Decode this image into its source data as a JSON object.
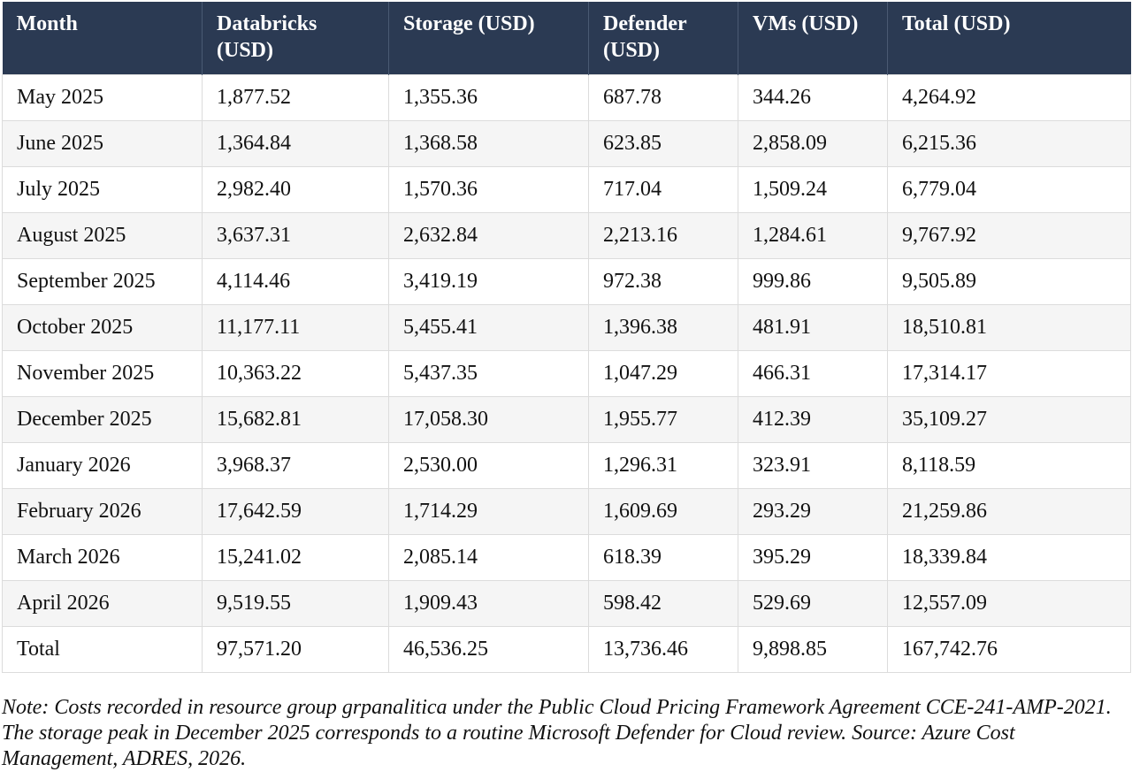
{
  "table": {
    "headers": [
      "Month",
      "Databricks (USD)",
      "Storage (USD)",
      "Defender (USD)",
      "VMs (USD)",
      "Total (USD)"
    ],
    "rows": [
      [
        "May 2025",
        "1,877.52",
        "1,355.36",
        "687.78",
        "344.26",
        "4,264.92"
      ],
      [
        "June 2025",
        "1,364.84",
        "1,368.58",
        "623.85",
        "2,858.09",
        "6,215.36"
      ],
      [
        "July 2025",
        "2,982.40",
        "1,570.36",
        "717.04",
        "1,509.24",
        "6,779.04"
      ],
      [
        "August 2025",
        "3,637.31",
        "2,632.84",
        "2,213.16",
        "1,284.61",
        "9,767.92"
      ],
      [
        "September 2025",
        "4,114.46",
        "3,419.19",
        "972.38",
        "999.86",
        "9,505.89"
      ],
      [
        "October 2025",
        "11,177.11",
        "5,455.41",
        "1,396.38",
        "481.91",
        "18,510.81"
      ],
      [
        "November 2025",
        "10,363.22",
        "5,437.35",
        "1,047.29",
        "466.31",
        "17,314.17"
      ],
      [
        "December 2025",
        "15,682.81",
        "17,058.30",
        "1,955.77",
        "412.39",
        "35,109.27"
      ],
      [
        "January 2026",
        "3,968.37",
        "2,530.00",
        "1,296.31",
        "323.91",
        "8,118.59"
      ],
      [
        "February 2026",
        "17,642.59",
        "1,714.29",
        "1,609.69",
        "293.29",
        "21,259.86"
      ],
      [
        "March 2026",
        "15,241.02",
        "2,085.14",
        "618.39",
        "395.29",
        "18,339.84"
      ],
      [
        "April 2026",
        "9,519.55",
        "1,909.43",
        "598.42",
        "529.69",
        "12,557.09"
      ]
    ],
    "total_row": [
      "Total",
      "97,571.20",
      "46,536.25",
      "13,736.46",
      "9,898.85",
      "167,742.76"
    ]
  },
  "note": "Note: Costs recorded in resource group grpanalitica under the Public Cloud Pricing Framework Agreement CCE-241-AMP-2021. The storage peak in December 2025 corresponds to a routine Microsoft Defender for Cloud review. Source: Azure Cost Management, ADRES, 2026.",
  "colors": {
    "header_bg": "#2b3a53",
    "header_text": "#ffffff",
    "row_alt_bg": "#f5f5f5",
    "border": "#dcdcdc"
  }
}
